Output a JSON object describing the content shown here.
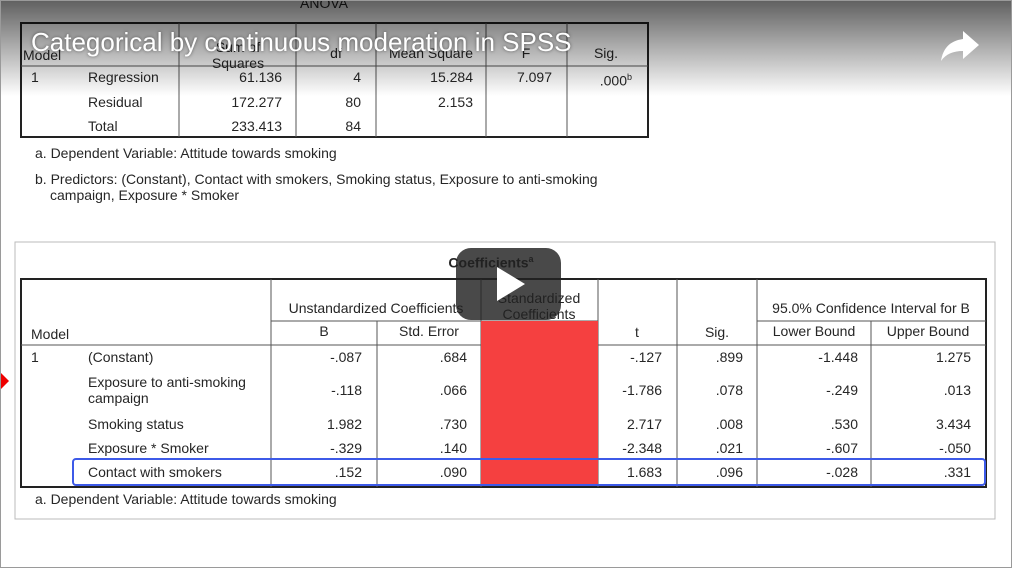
{
  "video": {
    "title": "Categorical by continuous moderation in SPSS"
  },
  "anova": {
    "title": "ANOVA",
    "headers": [
      "Model",
      "Sum of Squares",
      "df",
      "Mean Square",
      "F",
      "Sig."
    ],
    "model": "1",
    "rows": [
      [
        "Regression",
        "61.136",
        "4",
        "15.284",
        "7.097",
        ".000"
      ],
      [
        "Residual",
        "172.277",
        "80",
        "2.153"
      ],
      [
        "Total",
        "233.413",
        "84"
      ]
    ],
    "sig_marker": "b",
    "notes": [
      "a. Dependent Variable: Attitude towards smoking",
      "b. Predictors: (Constant), Contact with smokers, Smoking status, Exposure to anti-smoking campaign, Exposure * Smoker"
    ]
  },
  "coefficients": {
    "title": "Coefficients",
    "title_marker": "a",
    "headers": {
      "model": "Model",
      "unstandardized": "Unstandardized Coefficients",
      "standardized": "Standardized Coefficients",
      "t": "t",
      "sig": "Sig.",
      "ci": "95.0% Confidence Interval for B",
      "b": "B",
      "std_error": "Std. Error",
      "lower": "Lower Bound",
      "upper": "Upper Bound"
    },
    "model": "1",
    "rows": [
      [
        "(Constant)",
        "-.087",
        ".684",
        "-.127",
        ".899",
        "-1.448",
        "1.275"
      ],
      [
        "Exposure to anti-smoking campaign",
        "-.118",
        ".066",
        "-1.786",
        ".078",
        "-.249",
        ".013"
      ],
      [
        "Smoking status",
        "1.982",
        ".730",
        "2.717",
        ".008",
        ".530",
        "3.434"
      ],
      [
        "Exposure * Smoker",
        "-.329",
        ".140",
        "-2.348",
        ".021",
        "-.607",
        "-.050"
      ],
      [
        "Contact with smokers",
        ".152",
        ".090",
        "1.683",
        ".096",
        "-.028",
        ".331"
      ]
    ],
    "note": "a. Dependent Variable: Attitude towards smoking"
  }
}
